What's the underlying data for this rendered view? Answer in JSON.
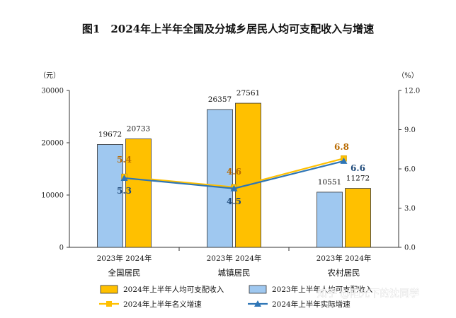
{
  "watermark": "知乎 @阳光下的沈同学",
  "chart_data": {
    "type": "bar",
    "title": "图1　2024年上半年全国及分城乡居民人均可支配收入与增速",
    "left_axis_unit": "（元）",
    "right_axis_unit": "（%）",
    "left_axis": {
      "min": 0,
      "max": 30000,
      "ticks": [
        "0",
        "10000",
        "20000",
        "30000"
      ]
    },
    "right_axis": {
      "min": 0,
      "max": 12,
      "ticks": [
        "0.0",
        "3.0",
        "6.0",
        "9.0",
        "12.0"
      ]
    },
    "categories": [
      "全国居民",
      "城镇居民",
      "农村居民"
    ],
    "year_labels": [
      "2023年",
      "2024年"
    ],
    "series": [
      {
        "name": "2023年上半年人均可支配收入",
        "kind": "bar",
        "color": "#9fc8f0",
        "values": [
          19672,
          26357,
          10551
        ],
        "labels": [
          "19672",
          "26357",
          "10551"
        ]
      },
      {
        "name": "2024年上半年人均可支配收入",
        "kind": "bar",
        "color": "#ffc000",
        "values": [
          20733,
          27561,
          11272
        ],
        "labels": [
          "20733",
          "27561",
          "11272"
        ]
      },
      {
        "name": "2024年上半年名义增速",
        "kind": "line",
        "axis": "right",
        "color": "#ffc000",
        "values": [
          5.4,
          4.6,
          6.8
        ],
        "labels": [
          "5.4",
          "4.6",
          "6.8"
        ]
      },
      {
        "name": "2024年上半年实际增速",
        "kind": "line",
        "axis": "right",
        "color": "#2e75b6",
        "values": [
          5.3,
          4.5,
          6.6
        ],
        "labels": [
          "5.3",
          "4.5",
          "6.6"
        ]
      }
    ]
  }
}
